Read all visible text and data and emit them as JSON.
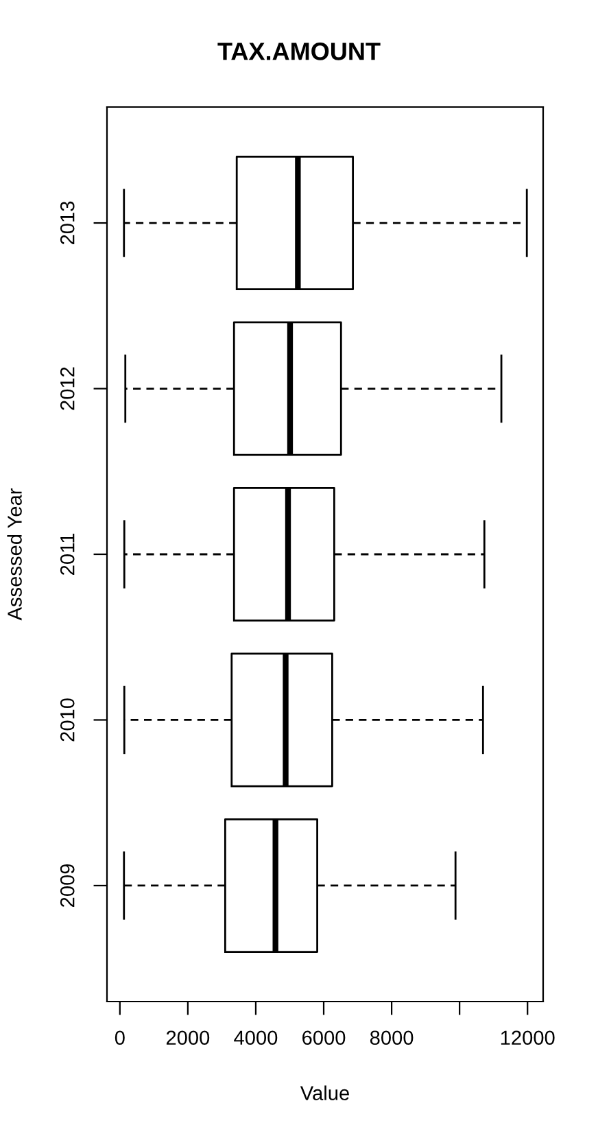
{
  "chart_data": {
    "type": "box",
    "title": "TAX.AMOUNT",
    "xlabel": "Value",
    "ylabel": "Assessed Year",
    "orientation": "horizontal",
    "color": "#000000",
    "categories": [
      "2013",
      "2012",
      "2011",
      "2010",
      "2009"
    ],
    "boxes": [
      {
        "low": 120,
        "q1": 3440,
        "median": 5240,
        "q3": 6860,
        "high": 11980
      },
      {
        "low": 160,
        "q1": 3360,
        "median": 5010,
        "q3": 6510,
        "high": 11230
      },
      {
        "low": 130,
        "q1": 3360,
        "median": 4950,
        "q3": 6310,
        "high": 10730
      },
      {
        "low": 130,
        "q1": 3290,
        "median": 4880,
        "q3": 6250,
        "high": 10690
      },
      {
        "low": 120,
        "q1": 3100,
        "median": 4580,
        "q3": 5810,
        "high": 9880
      }
    ],
    "xlim": [
      -380,
      12460
    ],
    "xticks": [
      0,
      2000,
      4000,
      6000,
      8000,
      {
        "value": 10000,
        "label": null
      },
      12000
    ]
  }
}
